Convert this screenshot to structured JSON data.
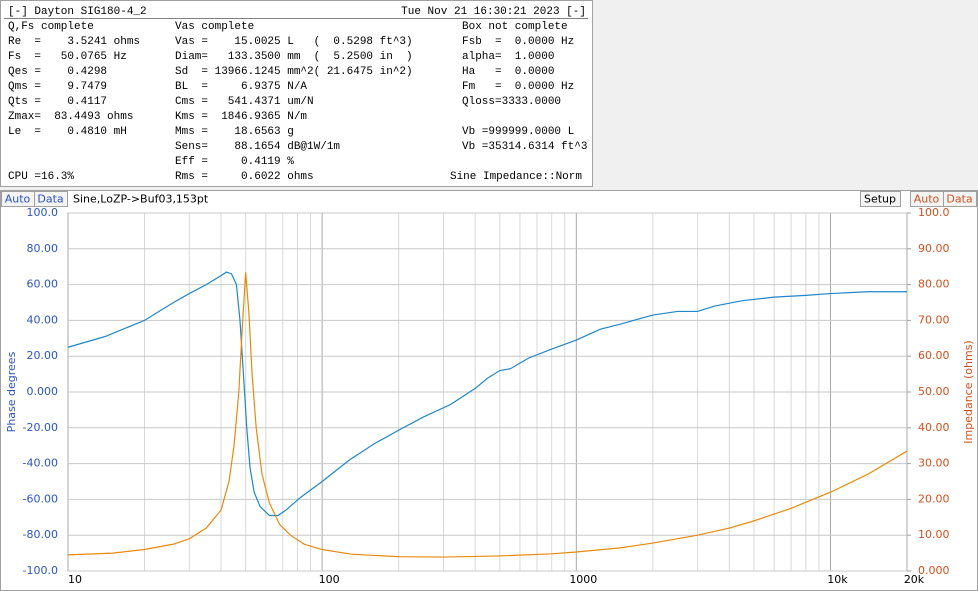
{
  "panel": {
    "title": "[-] Dayton SIG180-4_2",
    "timestamp": "Tue Nov 21 16:30:21 2023 [-]",
    "columns": [
      {
        "header": "Q,Fs complete",
        "lines": [
          "Re  =    3.5241 ohms",
          "Fs  =   50.0765 Hz",
          "Qes =    0.4298",
          "Qms =    9.7479",
          "Qts =    0.4117",
          "Zmax=  83.4493 ohms",
          "Le  =    0.4810 mH"
        ]
      },
      {
        "header": "Vas complete",
        "lines": [
          "Vas =    15.0025 L   (  0.5298 ft^3)",
          "Diam=   133.3500 mm  (  5.2500 in  )",
          "Sd  = 13966.1245 mm^2( 21.6475 in^2)",
          "BL  =     6.9375 N/A",
          "Cms =   541.4371 um/N",
          "Kms =  1846.9365 N/m",
          "Mms =    18.6563 g",
          "Sens=    88.1654 dB@1W/1m",
          "Eff =     0.4119 %",
          "Rms =     0.6022 ohms"
        ]
      },
      {
        "header": "Box not complete",
        "lines": [
          "Fsb  =  0.0000 Hz",
          "alpha=  1.0000",
          "Ha   =  0.0000",
          "Fm   =  0.0000 Hz",
          "Qloss=3333.0000"
        ],
        "vb_lines": [
          "Vb =999999.0000 L",
          "Vb =35314.6314 ft^3"
        ]
      }
    ],
    "cpu": "CPU =16.3%",
    "mode": "Sine Impedance::Norm"
  },
  "toolbar": {
    "left_buttons": [
      "Auto",
      "Data"
    ],
    "trace": "Sine,LoZP->Buf03,153pt",
    "setup": "Setup",
    "right_buttons": [
      "Auto",
      "Data"
    ]
  },
  "chart_data": {
    "type": "line",
    "y_label": "Phase degrees",
    "y2_label": "Impedance (ohms)",
    "xscale": "log",
    "xlim": [
      10,
      20000
    ],
    "xticks": [
      10,
      100,
      1000,
      {
        "value": 10000,
        "label": "10k"
      },
      {
        "value": 20000,
        "label": "20k"
      }
    ],
    "xminorticks": [
      20,
      30,
      40,
      50,
      60,
      70,
      80,
      90,
      200,
      300,
      400,
      500,
      600,
      700,
      800,
      900,
      2000,
      3000,
      4000,
      5000,
      6000,
      7000,
      8000,
      9000
    ],
    "ylim": [
      -100,
      100
    ],
    "yticks": [
      {
        "value": -100,
        "label": "-100.0"
      },
      {
        "value": -80,
        "label": "-80.00"
      },
      {
        "value": -60,
        "label": "-60.00"
      },
      {
        "value": -40,
        "label": "-40.00"
      },
      {
        "value": -20,
        "label": "-20.00"
      },
      {
        "value": 0,
        "label": "0.000"
      },
      {
        "value": 20,
        "label": "20.00"
      },
      {
        "value": 40,
        "label": "40.00"
      },
      {
        "value": 60,
        "label": "60.00"
      },
      {
        "value": 80,
        "label": "80.00"
      },
      {
        "value": 100,
        "label": "100.0"
      }
    ],
    "y2lim": [
      0,
      100
    ],
    "y2ticks": [
      {
        "value": 0,
        "label": "0.000"
      },
      {
        "value": 10,
        "label": "10.00"
      },
      {
        "value": 20,
        "label": "20.00"
      },
      {
        "value": 30,
        "label": "30.00"
      },
      {
        "value": 40,
        "label": "40.00"
      },
      {
        "value": 50,
        "label": "50.00"
      },
      {
        "value": 60,
        "label": "60.00"
      },
      {
        "value": 70,
        "label": "70.00"
      },
      {
        "value": 80,
        "label": "80.00"
      },
      {
        "value": 90,
        "label": "90.00"
      },
      {
        "value": 100,
        "label": "100.0"
      }
    ],
    "grid": true,
    "y_color": "#2a55c0",
    "y2_color": "#d0501e",
    "series": [
      {
        "color": "#1f86c8",
        "axis": "y",
        "x": [
          10,
          14,
          20,
          26,
          30,
          35,
          40,
          42,
          44,
          46,
          47.5,
          48.5,
          49.5,
          50.5,
          52,
          54,
          57,
          62,
          67,
          72,
          82,
          100,
          128,
          160,
          202,
          250,
          320,
          400,
          450,
          500,
          550,
          650,
          800,
          1000,
          1240,
          1500,
          2000,
          2500,
          3000,
          3500,
          4500,
          6000,
          8000,
          10000,
          14000,
          20000
        ],
        "values": [
          25,
          31,
          40,
          50,
          55,
          60,
          65,
          67,
          66,
          60,
          40,
          20,
          0,
          -20,
          -42,
          -56,
          -64,
          -69,
          -69,
          -66,
          -59,
          -50,
          -38,
          -29,
          -21,
          -14,
          -7,
          2,
          8,
          12,
          13,
          19,
          24,
          29,
          35,
          38,
          43,
          45,
          45,
          48,
          51,
          53,
          54,
          55,
          56,
          56
        ]
      },
      {
        "color": "#e8890c",
        "axis": "y2",
        "x": [
          10,
          15,
          20,
          26,
          30,
          35,
          40,
          43,
          45,
          47,
          48.5,
          50,
          51.5,
          53,
          55,
          58,
          62,
          68,
          75,
          85,
          100,
          130,
          200,
          300,
          500,
          800,
          1000,
          1500,
          2000,
          3000,
          4000,
          5000,
          7000,
          10000,
          14000,
          20000
        ],
        "values": [
          4.5,
          5,
          6,
          7.5,
          9,
          12,
          17,
          25,
          35,
          50,
          68,
          83.4,
          72,
          55,
          40,
          27,
          19,
          13,
          10,
          7.5,
          6,
          4.7,
          4,
          3.9,
          4.2,
          4.8,
          5.3,
          6.5,
          7.8,
          10,
          12,
          14,
          17.5,
          22,
          27,
          33.5
        ]
      }
    ]
  }
}
